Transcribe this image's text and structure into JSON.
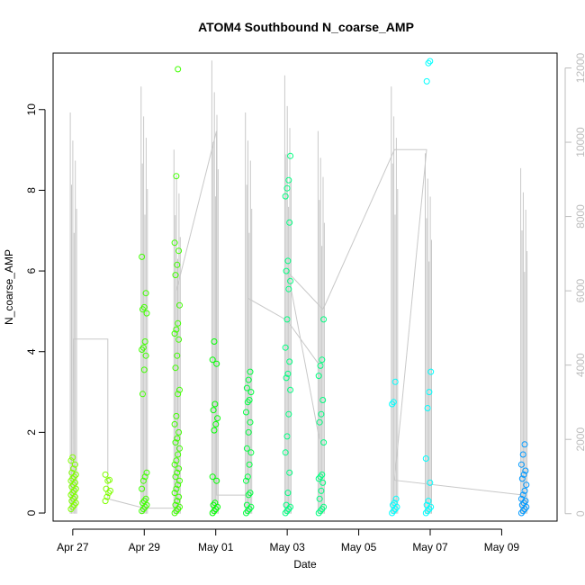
{
  "chart_data": {
    "type": "scatter",
    "title": "ATOM4 Southbound N_coarse_AMP",
    "xlabel": "Date",
    "ylabel": "N_coarse_AMP",
    "x_ticks": [
      "Apr 27",
      "Apr 29",
      "May 01",
      "May 03",
      "May 05",
      "May 07",
      "May 09"
    ],
    "x_tick_days": [
      0,
      2,
      4,
      6,
      8,
      10,
      12
    ],
    "xlim_days": [
      -0.55,
      13.55
    ],
    "ylim": [
      -0.2,
      11.4
    ],
    "y_ticks": [
      0,
      2,
      4,
      6,
      8,
      10
    ],
    "y2lim": [
      -200,
      12400
    ],
    "y2_ticks": [
      0,
      2000,
      4000,
      6000,
      8000,
      10000,
      12000
    ],
    "points_color_scale": "day gradient: yellow-green (Apr 27) to blue (May 09)",
    "points_series": [
      {
        "name": "Apr 27",
        "day": 0.02,
        "color": "#80ff00",
        "values": [
          0.1,
          0.15,
          0.2,
          0.25,
          0.3,
          0.35,
          0.4,
          0.45,
          0.5,
          0.55,
          0.6,
          0.65,
          0.7,
          0.75,
          0.8,
          0.85,
          0.9,
          0.95,
          1.0,
          1.1,
          1.2,
          1.3,
          1.38
        ]
      },
      {
        "name": "Apr 28",
        "day": 0.98,
        "color": "#80ff00",
        "values": [
          0.3,
          0.4,
          0.5,
          0.55,
          0.6,
          0.8,
          0.82,
          0.95
        ]
      },
      {
        "name": "Apr 29",
        "day": 2.0,
        "color": "#40ff00",
        "values": [
          0.05,
          0.1,
          0.15,
          0.2,
          0.25,
          0.3,
          0.35,
          0.6,
          0.8,
          0.9,
          1.0,
          2.95,
          3.55,
          3.9,
          4.05,
          4.1,
          4.25,
          4.95,
          5.05,
          5.1,
          5.45,
          6.35
        ]
      },
      {
        "name": "Apr 30",
        "day": 2.92,
        "color": "#40ff00",
        "values": [
          0.0,
          0.05,
          0.1,
          0.15,
          0.2,
          0.3,
          0.4,
          0.5,
          0.6,
          0.7,
          0.8,
          0.9,
          1.0,
          1.1,
          1.2,
          1.3,
          1.45,
          1.6,
          1.75,
          1.85,
          2.0,
          2.2,
          2.4,
          2.95,
          3.05,
          3.6,
          3.9,
          4.3,
          4.45,
          4.55,
          4.7,
          5.15,
          5.9,
          6.15,
          6.5,
          6.7,
          8.35,
          11.0
        ]
      },
      {
        "name": "May 01",
        "day": 3.98,
        "color": "#00ff00",
        "values": [
          0.0,
          0.05,
          0.1,
          0.15,
          0.2,
          0.25,
          0.8,
          0.9,
          2.05,
          2.2,
          2.35,
          2.55,
          2.7,
          3.7,
          3.8,
          4.25
        ]
      },
      {
        "name": "May 02",
        "day": 4.92,
        "color": "#00ff40",
        "values": [
          0.0,
          0.05,
          0.1,
          0.15,
          0.2,
          0.45,
          0.5,
          0.8,
          0.9,
          1.2,
          1.5,
          1.6,
          2.0,
          2.25,
          2.5,
          2.75,
          2.8,
          3.0,
          3.1,
          3.3,
          3.5
        ]
      },
      {
        "name": "May 03",
        "day": 6.02,
        "color": "#00ff80",
        "values": [
          0.0,
          0.05,
          0.1,
          0.15,
          0.2,
          0.5,
          1.0,
          1.5,
          1.9,
          2.45,
          3.05,
          3.35,
          3.45,
          3.75,
          4.1,
          4.8,
          5.55,
          5.75,
          6.0,
          6.25,
          7.2,
          7.85,
          8.05,
          8.25,
          8.85
        ]
      },
      {
        "name": "May 04",
        "day": 6.95,
        "color": "#00ff80",
        "values": [
          0.0,
          0.05,
          0.1,
          0.15,
          0.35,
          0.55,
          0.75,
          0.85,
          0.9,
          0.95,
          1.75,
          2.25,
          2.45,
          2.8,
          3.4,
          3.65,
          3.8,
          4.8
        ]
      },
      {
        "name": "May 06",
        "day": 9.0,
        "color": "#00ffff",
        "values": [
          0.0,
          0.05,
          0.1,
          0.15,
          0.2,
          0.25,
          0.35,
          2.7,
          2.75,
          3.25
        ]
      },
      {
        "name": "May 07",
        "day": 9.95,
        "color": "#00ffff",
        "values": [
          0.0,
          0.05,
          0.1,
          0.15,
          0.2,
          0.3,
          0.75,
          1.35,
          2.6,
          3.0,
          3.5,
          10.7,
          11.15,
          11.2
        ]
      },
      {
        "name": "May 09",
        "day": 12.62,
        "color": "#0099ff",
        "values": [
          0.0,
          0.05,
          0.1,
          0.15,
          0.2,
          0.25,
          0.3,
          0.35,
          0.45,
          0.55,
          0.7,
          0.85,
          0.95,
          1.05,
          1.2,
          1.45,
          1.7
        ]
      }
    ],
    "secondary_series": {
      "name": "right-axis trace",
      "color": "#c8c8c8",
      "path": [
        [
          0.0,
          200
        ],
        [
          0.02,
          4700
        ],
        [
          0.98,
          4700
        ],
        [
          0.98,
          400
        ],
        [
          2.0,
          150
        ],
        [
          2.9,
          150
        ],
        [
          2.9,
          6000
        ],
        [
          4.02,
          10300
        ],
        [
          4.02,
          500
        ],
        [
          4.9,
          500
        ],
        [
          4.9,
          5800
        ],
        [
          6.0,
          5200
        ],
        [
          6.9,
          4000
        ],
        [
          6.9,
          2000
        ],
        [
          6.02,
          6500
        ],
        [
          7.0,
          5500
        ],
        [
          9.0,
          9800
        ],
        [
          9.9,
          9800
        ],
        [
          9.0,
          900
        ],
        [
          12.62,
          500
        ]
      ],
      "bursts": [
        {
          "day": 0.02,
          "peak": 10800
        },
        {
          "day": 2.0,
          "peak": 11500
        },
        {
          "day": 2.92,
          "peak": 9800
        },
        {
          "day": 3.98,
          "peak": 12200
        },
        {
          "day": 4.92,
          "peak": 10800
        },
        {
          "day": 6.02,
          "peak": 11800
        },
        {
          "day": 6.95,
          "peak": 10300
        },
        {
          "day": 9.0,
          "peak": 11500
        },
        {
          "day": 9.95,
          "peak": 9700
        },
        {
          "day": 12.62,
          "peak": 9300
        }
      ]
    }
  }
}
